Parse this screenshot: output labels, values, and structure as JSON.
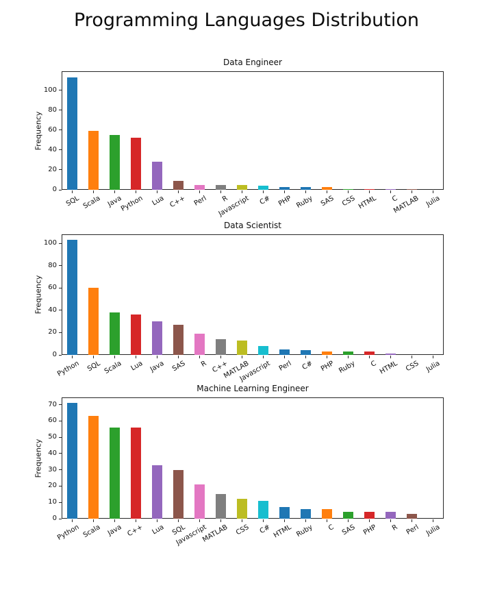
{
  "figure": {
    "title": "Programming Languages Distribution",
    "background_color": "#ffffff",
    "text_color": "#0d0d0d"
  },
  "chart_data": [
    {
      "type": "bar",
      "title": "Data Engineer",
      "xlabel": "",
      "ylabel": "Frequency",
      "categories": [
        "SQL",
        "Scala",
        "Java",
        "Python",
        "Lua",
        "C++",
        "Perl",
        "R",
        "Javascript",
        "C#",
        "PHP",
        "Ruby",
        "SAS",
        "CSS",
        "HTML",
        "C",
        "MATLAB",
        "Julia"
      ],
      "values": [
        113,
        59,
        55,
        52,
        28,
        9,
        5,
        5,
        5,
        4,
        3,
        3,
        3,
        1,
        1,
        1,
        1,
        0
      ],
      "bar_colors": [
        "#1f77b4",
        "#ff7f0e",
        "#2ca02c",
        "#d62728",
        "#9467bd",
        "#8c564b",
        "#e377c2",
        "#7f7f7f",
        "#bcbd22",
        "#17becf",
        "#1f77b4",
        "#1f77b4",
        "#ff7f0e",
        "#2ca02c",
        "#d62728",
        "#9467bd",
        "#8c564b",
        "#e377c2"
      ],
      "yticks": [
        0,
        20,
        40,
        60,
        80,
        100
      ],
      "ylim": [
        0,
        119
      ],
      "grid": false,
      "legend": "none"
    },
    {
      "type": "bar",
      "title": "Data Scientist",
      "xlabel": "",
      "ylabel": "Frequency",
      "categories": [
        "Python",
        "SQL",
        "Scala",
        "Lua",
        "Java",
        "SAS",
        "R",
        "C++",
        "MATLAB",
        "Javascript",
        "Perl",
        "C#",
        "PHP",
        "Ruby",
        "C",
        "HTML",
        "CSS",
        "Julia"
      ],
      "values": [
        103,
        60,
        38,
        36,
        30,
        27,
        19,
        14,
        13,
        8,
        5,
        4,
        3,
        3,
        3,
        1,
        0,
        0
      ],
      "bar_colors": [
        "#1f77b4",
        "#ff7f0e",
        "#2ca02c",
        "#d62728",
        "#9467bd",
        "#8c564b",
        "#e377c2",
        "#7f7f7f",
        "#bcbd22",
        "#17becf",
        "#1f77b4",
        "#1f77b4",
        "#ff7f0e",
        "#2ca02c",
        "#d62728",
        "#9467bd",
        "#8c564b",
        "#e377c2"
      ],
      "yticks": [
        0,
        20,
        40,
        60,
        80,
        100
      ],
      "ylim": [
        0,
        108
      ],
      "grid": false,
      "legend": "none"
    },
    {
      "type": "bar",
      "title": "Machine Learning Engineer",
      "xlabel": "",
      "ylabel": "Frequency",
      "categories": [
        "Python",
        "Scala",
        "Java",
        "C++",
        "Lua",
        "SQL",
        "Javascript",
        "MATLAB",
        "CSS",
        "C#",
        "HTML",
        "Ruby",
        "C",
        "SAS",
        "PHP",
        "R",
        "Perl",
        "Julia"
      ],
      "values": [
        71,
        63,
        56,
        56,
        33,
        30,
        21,
        15,
        12,
        11,
        7,
        6,
        6,
        4,
        4,
        4,
        3,
        0
      ],
      "bar_colors": [
        "#1f77b4",
        "#ff7f0e",
        "#2ca02c",
        "#d62728",
        "#9467bd",
        "#8c564b",
        "#e377c2",
        "#7f7f7f",
        "#bcbd22",
        "#17becf",
        "#1f77b4",
        "#1f77b4",
        "#ff7f0e",
        "#2ca02c",
        "#d62728",
        "#9467bd",
        "#8c564b",
        "#e377c2"
      ],
      "yticks": [
        0,
        10,
        20,
        30,
        40,
        50,
        60,
        70
      ],
      "ylim": [
        0,
        74.5
      ],
      "grid": false,
      "legend": "none"
    }
  ]
}
